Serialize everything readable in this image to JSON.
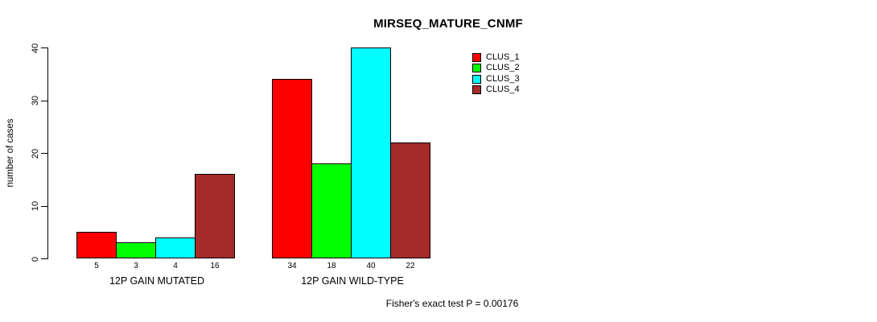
{
  "chart_data": {
    "type": "bar",
    "title": "MIRSEQ_MATURE_CNMF",
    "ylabel": "number of cases",
    "xlabel": "",
    "ylim": [
      0,
      40
    ],
    "yticks": [
      0,
      10,
      20,
      30,
      40
    ],
    "grid": false,
    "legend_position": "top-right-outside",
    "bar_value_labels": true,
    "categories": [
      "12P GAIN MUTATED",
      "12P GAIN WILD-TYPE"
    ],
    "series": [
      {
        "name": "CLUS_1",
        "color": "#ff0000",
        "values": [
          5,
          34
        ]
      },
      {
        "name": "CLUS_2",
        "color": "#00ff00",
        "values": [
          3,
          18
        ]
      },
      {
        "name": "CLUS_3",
        "color": "#00ffff",
        "values": [
          4,
          40
        ]
      },
      {
        "name": "CLUS_4",
        "color": "#a52a2a",
        "values": [
          16,
          22
        ]
      }
    ],
    "annotation": "Fisher's exact test P = 0.00176"
  }
}
